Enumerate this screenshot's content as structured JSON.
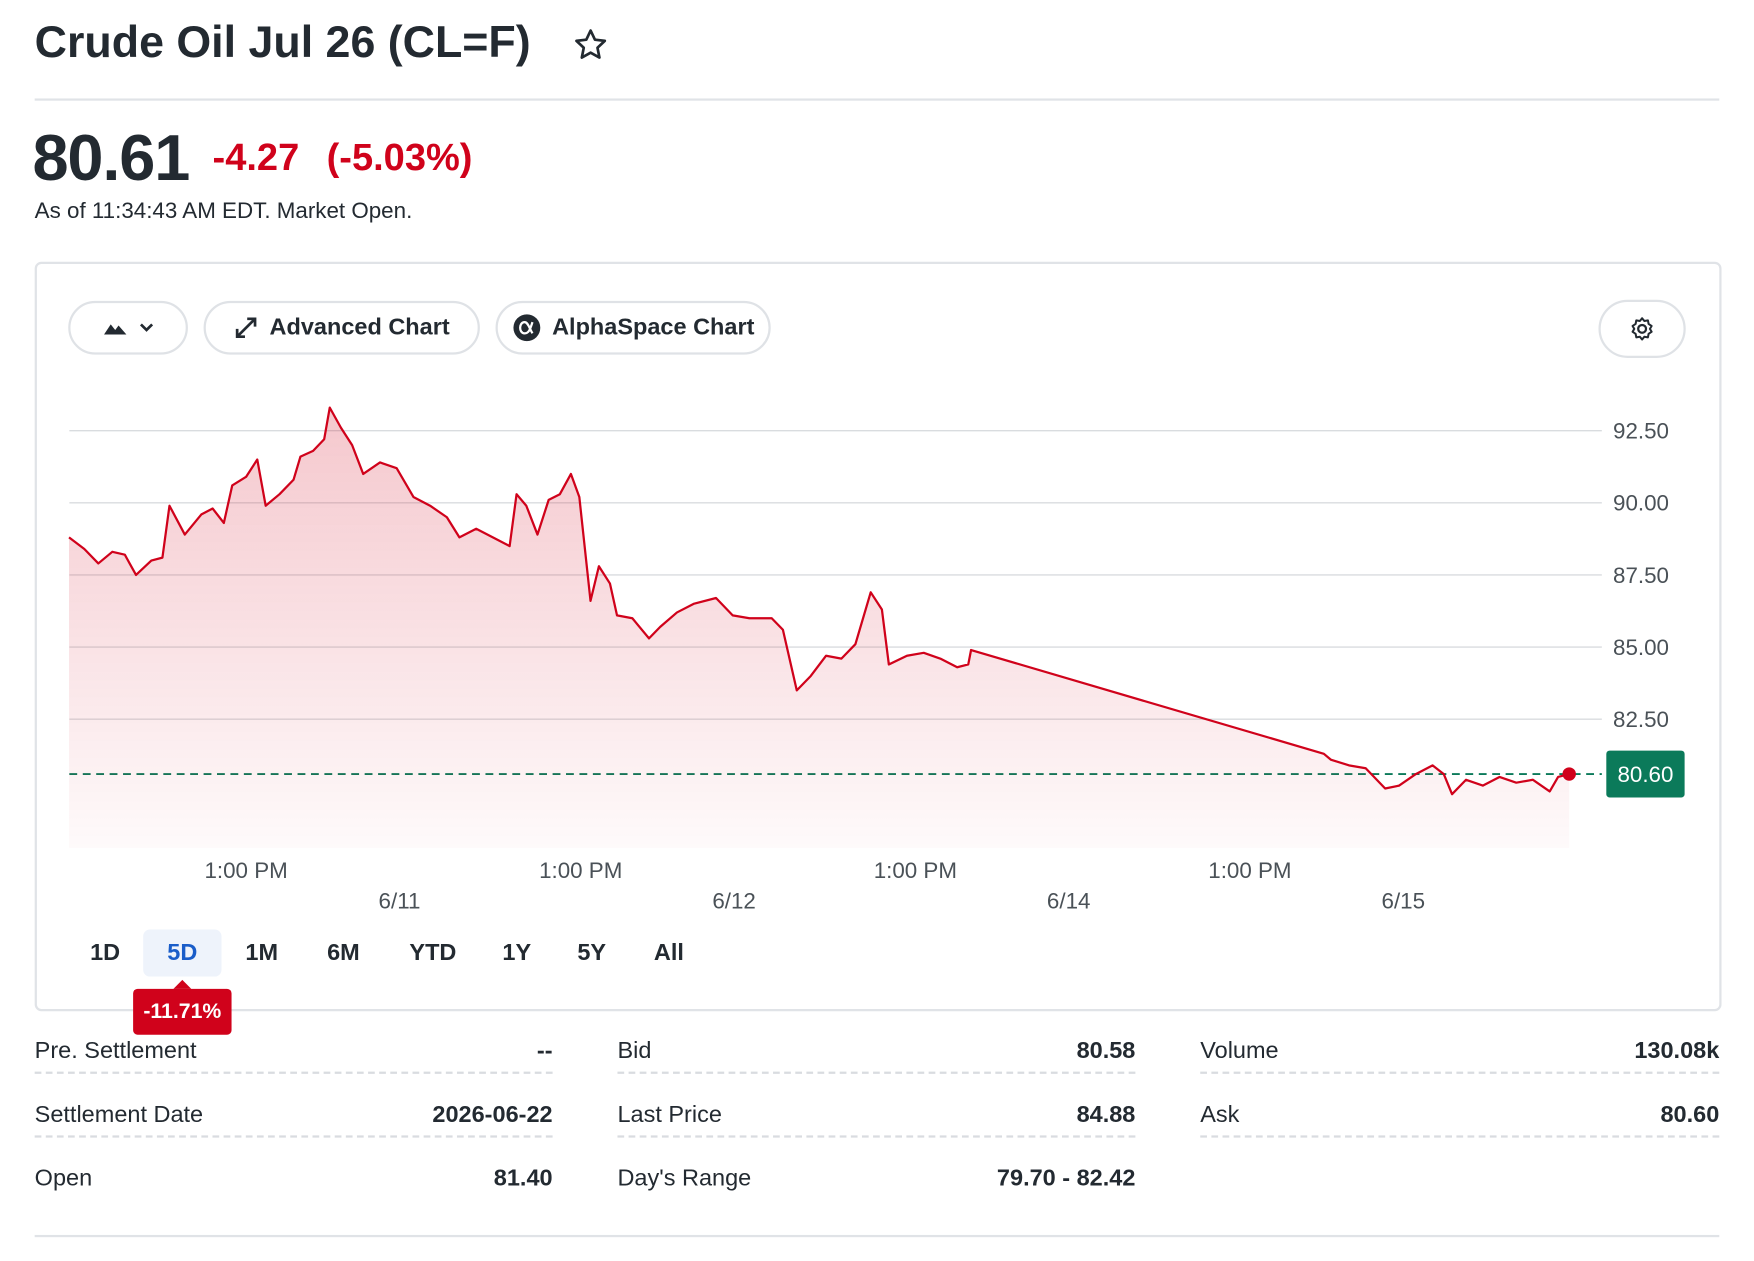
{
  "header": {
    "title": "Crude Oil Jul 26 (CL=F)",
    "price": "80.61",
    "change": "-4.27",
    "change_percent": "(-5.03%)",
    "status": "As of 11:34:43 AM EDT. Market Open."
  },
  "toolbar": {
    "advanced": "Advanced Chart",
    "alphaspace": "AlphaSpace Chart"
  },
  "chart_data": {
    "type": "line",
    "fill": true,
    "grid": true,
    "x": [
      0.3,
      1.4,
      2.4,
      3.4,
      4.3,
      5.1,
      6.2,
      7.0,
      7.5,
      8.6,
      9.8,
      10.6,
      11.4,
      12.0,
      13.0,
      13.8,
      14.4,
      15.4,
      16.4,
      16.9,
      17.8,
      18.6,
      19.0,
      19.8,
      20.6,
      21.4,
      22.6,
      23.8,
      25.0,
      26.2,
      27.4,
      28.3,
      29.5,
      30.7,
      31.9,
      32.4,
      33.1,
      33.9,
      34.7,
      35.5,
      36.3,
      36.9,
      37.7,
      38.3,
      39.1,
      39.6,
      40.7,
      41.9,
      42.7,
      43.9,
      45.1,
      46.7,
      47.9,
      49.1,
      50.7,
      51.5,
      52.5,
      53.5,
      54.6,
      55.7,
      56.7,
      57.8,
      58.6,
      59.1,
      60.4,
      61.6,
      62.8,
      64.0,
      64.8,
      65.0,
      90.3,
      90.8,
      92.1,
      93.3,
      94.7,
      95.7,
      96.9,
      98.1,
      98.9,
      99.5,
      100.5,
      101.7,
      102.9,
      104.1,
      105.3,
      106.5,
      107.1,
      107.9
    ],
    "series": [
      {
        "color": "#d0021b",
        "values": [
          88.8,
          88.4,
          87.9,
          88.3,
          88.2,
          87.5,
          88.0,
          88.1,
          89.9,
          88.9,
          89.6,
          89.8,
          89.3,
          90.6,
          90.9,
          91.5,
          89.9,
          90.3,
          90.8,
          91.6,
          91.8,
          92.2,
          93.3,
          92.6,
          92.0,
          91.0,
          91.4,
          91.2,
          90.2,
          89.9,
          89.5,
          88.8,
          89.1,
          88.8,
          88.5,
          90.3,
          89.9,
          88.9,
          90.1,
          90.3,
          91.0,
          90.2,
          86.6,
          87.8,
          87.2,
          86.1,
          86.0,
          85.3,
          85.7,
          86.2,
          86.5,
          86.7,
          86.1,
          86.0,
          86.0,
          85.6,
          83.5,
          84.0,
          84.7,
          84.6,
          85.1,
          86.9,
          86.3,
          84.4,
          84.7,
          84.8,
          84.6,
          84.3,
          84.4,
          84.9,
          81.3,
          81.1,
          80.9,
          80.8,
          80.1,
          80.2,
          80.6,
          80.9,
          80.6,
          79.9,
          80.4,
          80.2,
          80.5,
          80.3,
          80.4,
          80.0,
          80.5,
          80.6
        ]
      }
    ],
    "xlim": [
      0,
      110
    ],
    "ylim": [
      78.7,
      94
    ],
    "yticks": [
      {
        "value": 82.5,
        "label": "82.50"
      },
      {
        "value": 85,
        "label": "85.00"
      },
      {
        "value": 87.5,
        "label": "87.50"
      },
      {
        "value": 90,
        "label": "90.00"
      },
      {
        "value": 92.5,
        "label": "92.50"
      }
    ],
    "xticks": [
      {
        "value": 13,
        "label": "1:00 PM"
      },
      {
        "value": 37,
        "label": "1:00 PM"
      },
      {
        "value": 61,
        "label": "1:00 PM"
      },
      {
        "value": 85,
        "label": "1:00 PM"
      }
    ],
    "date_ticks": [
      {
        "value": 24,
        "label": "6/11"
      },
      {
        "value": 48,
        "label": "6/12"
      },
      {
        "value": 72,
        "label": "6/14"
      },
      {
        "value": 96,
        "label": "6/15"
      }
    ],
    "reference_line": {
      "value": 80.6,
      "label": "80.60",
      "color": "#0b7a5a"
    }
  },
  "ranges": [
    "1D",
    "5D",
    "1M",
    "6M",
    "YTD",
    "1Y",
    "5Y",
    "All"
  ],
  "selected_range": 1,
  "range_change": "-11.71%",
  "stats": [
    [
      [
        "Pre. Settlement",
        "--"
      ],
      [
        "Settlement Date",
        "2026-06-22"
      ],
      [
        "Open",
        "81.40"
      ]
    ],
    [
      [
        "Bid",
        "80.58"
      ],
      [
        "Last Price",
        "84.88"
      ],
      [
        "Day's Range",
        "79.70 - 82.42"
      ]
    ],
    [
      [
        "Volume",
        "130.08k"
      ],
      [
        "Ask",
        "80.60"
      ]
    ]
  ]
}
